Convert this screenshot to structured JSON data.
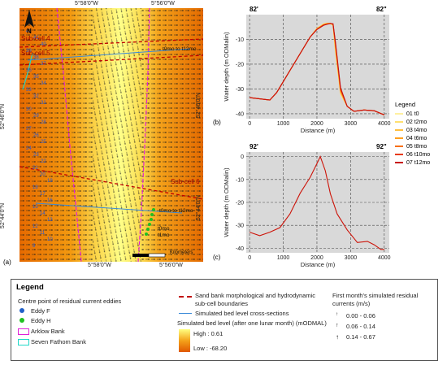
{
  "map": {
    "panel_label": "(a)",
    "top_lon_labels": [
      "5°58'0\"W",
      "5°56'0\"W"
    ],
    "bottom_lon_labels": [
      "5°58'0\"W",
      "5°56'0\"W"
    ],
    "left_lat_labels": [
      "52°46'0\"N",
      "52°44'0\"N"
    ],
    "right_lat_labels": [
      "52°46'0\"N",
      "52°44'0\"N"
    ],
    "subcell_labels": [
      "Sub-cell 4",
      "Sub-cell 5",
      "Sub-cell 6"
    ],
    "annotations": [
      "t0mo to t12mo",
      "t0mo to t12mo",
      "t0mo",
      "t1mo"
    ],
    "point_numbers": [
      "42",
      "41",
      "40",
      "39",
      "38",
      "37",
      "36",
      "35",
      "34",
      "33",
      "32",
      "31",
      "30",
      "29",
      "28",
      "27",
      "26",
      "25",
      "24",
      "23",
      "22",
      "21",
      "20",
      "19",
      "18",
      "17",
      "16",
      "15",
      "14",
      "13",
      "12",
      "11",
      "10",
      "9"
    ],
    "north_label": "N",
    "scale_label": "Kilometers",
    "scale_ticks": [
      "0",
      "0.5",
      "1"
    ],
    "colors": {
      "bank_pink": "#e020d8",
      "bank_cyan": "#20d8c8",
      "subcell_red": "#c00000",
      "cross_section_blue": "#3a8ad8",
      "bed_high": "#ffff80",
      "bed_low": "#e05800"
    }
  },
  "profiles": [
    {
      "panel_label": "(b)",
      "left_label": "82'",
      "right_label": "82\"",
      "ylabel": "Water depth (m ODMalin)",
      "xlabel": "Distance (m)",
      "x_ticks": [
        "0",
        "1000",
        "2000",
        "3000",
        "4000"
      ],
      "y_ticks": [
        "-10",
        "-20",
        "-30",
        "-40"
      ]
    },
    {
      "panel_label": "(c)",
      "left_label": "92'",
      "right_label": "92\"",
      "ylabel": "Water depth (m ODMalin)",
      "xlabel": "Distance (m)",
      "x_ticks": [
        "0",
        "1000",
        "2000",
        "3000",
        "4000"
      ],
      "y_ticks": [
        "0",
        "-10",
        "-20",
        "-30",
        "-40"
      ]
    }
  ],
  "chart_data": [
    {
      "type": "line",
      "title": "",
      "xlabel": "Distance (m)",
      "ylabel": "Water depth (m ODMalin)",
      "xlim": [
        -100,
        4150
      ],
      "ylim": [
        -42,
        0
      ],
      "x": [
        0,
        300,
        600,
        800,
        1000,
        1200,
        1400,
        1600,
        1800,
        2000,
        2200,
        2300,
        2400,
        2480,
        2550,
        2700,
        2900,
        3100,
        3400,
        3700,
        4000
      ],
      "series": [
        {
          "name": "01 t0",
          "values": [
            -33.5,
            -34,
            -34.5,
            -31.5,
            -27,
            -22.5,
            -18,
            -13.5,
            -9,
            -5.5,
            -3.8,
            -3.5,
            -3.7,
            -4.5,
            -15,
            -32,
            -37,
            -39,
            -38.5,
            -38.8,
            -40.5
          ]
        },
        {
          "name": "02 t2mo",
          "values": [
            -33.5,
            -34,
            -34.5,
            -31.5,
            -27,
            -22.5,
            -18,
            -13.5,
            -9,
            -5.5,
            -3.7,
            -3.4,
            -3.6,
            -4.3,
            -15,
            -32,
            -37,
            -39,
            -38.5,
            -38.8,
            -40.5
          ]
        },
        {
          "name": "03 t4mo",
          "values": [
            -33.5,
            -34,
            -34.5,
            -31.5,
            -27,
            -22.5,
            -18,
            -13.5,
            -9,
            -5.6,
            -3.9,
            -3.5,
            -3.5,
            -4.2,
            -14,
            -31.5,
            -37,
            -39,
            -38.5,
            -38.8,
            -40.5
          ]
        },
        {
          "name": "04 t6mo",
          "values": [
            -33.5,
            -34,
            -34.5,
            -31.5,
            -27,
            -22.5,
            -18,
            -13.5,
            -9,
            -5.7,
            -4,
            -3.6,
            -3.5,
            -4,
            -13,
            -31,
            -37,
            -39,
            -38.5,
            -38.8,
            -40.5
          ]
        },
        {
          "name": "05 t8mo",
          "values": [
            -33.5,
            -34,
            -34.5,
            -31.5,
            -27,
            -22.5,
            -18,
            -13.5,
            -9,
            -5.8,
            -4.1,
            -3.7,
            -3.5,
            -3.9,
            -12,
            -30.5,
            -37,
            -39,
            -38.5,
            -38.8,
            -40.5
          ]
        },
        {
          "name": "06 t10mo",
          "values": [
            -33.5,
            -34,
            -34.5,
            -31.5,
            -27,
            -22.5,
            -18,
            -13.5,
            -9,
            -5.9,
            -4.2,
            -3.8,
            -3.5,
            -3.8,
            -11.5,
            -30,
            -37,
            -39,
            -38.5,
            -38.8,
            -40.5
          ]
        },
        {
          "name": "07 t12mo",
          "values": [
            -33.5,
            -34,
            -34.5,
            -31.5,
            -27,
            -22.5,
            -18,
            -13.5,
            -9,
            -6,
            -4.3,
            -3.9,
            -3.6,
            -3.7,
            -11,
            -29.5,
            -37,
            -39,
            -38.5,
            -38.8,
            -40.5
          ]
        }
      ],
      "legend_title": "Legend",
      "legend_position": "right",
      "grid": true
    },
    {
      "type": "line",
      "title": "",
      "xlabel": "Distance (m)",
      "ylabel": "Water depth (m ODMalin)",
      "xlim": [
        -100,
        4150
      ],
      "ylim": [
        -42,
        2
      ],
      "x": [
        0,
        300,
        600,
        900,
        1200,
        1500,
        1800,
        2000,
        2100,
        2250,
        2400,
        2600,
        2900,
        3200,
        3500,
        3700,
        3900,
        4000
      ],
      "series": [
        {
          "name": "01 t0",
          "values": [
            -33,
            -34.5,
            -33,
            -31,
            -25,
            -16,
            -9,
            -3,
            0,
            -6,
            -16,
            -25,
            -32,
            -37.5,
            -37,
            -38.5,
            -40.5,
            -40.5
          ]
        },
        {
          "name": "07 t12mo",
          "values": [
            -33,
            -34.5,
            -33,
            -31,
            -25,
            -16,
            -9,
            -3,
            0,
            -6.2,
            -16.2,
            -25,
            -32,
            -37.5,
            -37,
            -38.5,
            -40.5,
            -40.5
          ]
        }
      ],
      "grid": true
    }
  ],
  "profile_legend": {
    "title": "Legend",
    "items": [
      {
        "label": "01 t0",
        "color": "#fff0a0"
      },
      {
        "label": "02 t2mo",
        "color": "#ffe070"
      },
      {
        "label": "03 t4mo",
        "color": "#ffc040"
      },
      {
        "label": "04 t6mo",
        "color": "#ffa020"
      },
      {
        "label": "05 t8mo",
        "color": "#f87010"
      },
      {
        "label": "06 t10mo",
        "color": "#e83a10"
      },
      {
        "label": "07 t12mo",
        "color": "#c81010"
      }
    ]
  },
  "legend": {
    "title": "Legend",
    "eddy_heading": "Centre point of residual current eddies",
    "eddy_f": {
      "label": "Eddy F",
      "color": "#2060c8"
    },
    "eddy_h": {
      "label": "Eddy H",
      "color": "#20c020"
    },
    "arklow": {
      "label": "Arklow Bank",
      "color": "#e020d8"
    },
    "seven_fathom": {
      "label": "Seven Fathom Bank",
      "color": "#20d8c8"
    },
    "boundaries": "Sand bank morphological and hydrodynamic sub-cell boundaries",
    "cross_sections": "Simulated bed level cross-sections",
    "bed_level_title": "Simulated bed level (after one lunar month) (mODMAL)",
    "bed_high": "High : 0.61",
    "bed_low": "Low : -68.20",
    "currents_title": "First month's simulated residual currents (m/s)",
    "current_classes": [
      "0.00 - 0.06",
      "0.06 - 0.14",
      "0.14 - 0.67"
    ]
  }
}
